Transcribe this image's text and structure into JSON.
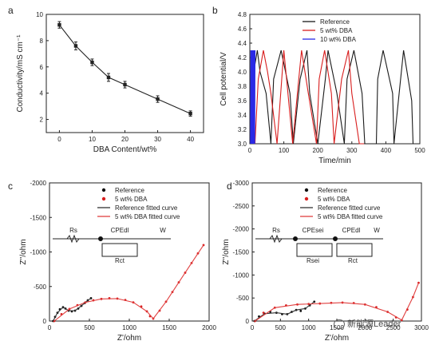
{
  "watermark": "新能源Leader",
  "chart_data": [
    {
      "type": "line",
      "panel_letter": "a",
      "xlabel": "DBA Content/wt%",
      "ylabel": "Conductivity/mS cm⁻¹",
      "xlim": [
        -4,
        44
      ],
      "ylim": [
        1,
        10
      ],
      "xticks": [
        0,
        10,
        20,
        30,
        40
      ],
      "yticks": [
        2,
        4,
        6,
        8,
        10
      ],
      "series": [
        {
          "color": "#222222",
          "x": [
            0,
            5,
            10,
            15,
            20,
            30,
            40
          ],
          "y": [
            9.2,
            7.6,
            6.35,
            5.2,
            4.65,
            3.55,
            2.45
          ],
          "err": [
            0.25,
            0.3,
            0.25,
            0.3,
            0.25,
            0.25,
            0.2
          ]
        }
      ]
    },
    {
      "type": "line",
      "panel_letter": "b",
      "xlabel": "Time/min",
      "ylabel": "Cell potential/V",
      "xlim": [
        0,
        500
      ],
      "ylim": [
        3.0,
        4.8
      ],
      "xticks": [
        0,
        100,
        200,
        300,
        400,
        500
      ],
      "yticks": [
        3.0,
        3.2,
        3.4,
        3.6,
        3.8,
        4.0,
        4.2,
        4.4,
        4.6,
        4.8
      ],
      "legend_position": "top-right",
      "legend": [
        "Reference",
        "5 wt% DBA",
        "10 wt% DBA"
      ],
      "series": [
        {
          "name": "Reference",
          "color": "#1a1a1a",
          "x": [
            0,
            8,
            22,
            30,
            48,
            62,
            70,
            92,
            118,
            128,
            148,
            168,
            176,
            200,
            222,
            230,
            256,
            278,
            286,
            306,
            330,
            338,
            372,
            376,
            392,
            420,
            424,
            452,
            476,
            480
          ],
          "y": [
            3.0,
            3.9,
            4.3,
            4.0,
            3.7,
            3.0,
            3.9,
            4.3,
            3.7,
            3.0,
            3.9,
            4.3,
            3.7,
            3.0,
            3.9,
            4.3,
            3.7,
            3.0,
            3.9,
            4.3,
            3.7,
            3.0,
            3.0,
            3.9,
            4.3,
            3.7,
            3.0,
            4.3,
            3.6,
            3.0
          ]
        },
        {
          "name": "5 wt% DBA",
          "color": "#d81e1e",
          "x": [
            15,
            25,
            40,
            52,
            62,
            80,
            100,
            110,
            126,
            144,
            152,
            172,
            196,
            204,
            220,
            240,
            248,
            270,
            290,
            300,
            322,
            336
          ],
          "y": [
            3.0,
            3.9,
            4.3,
            4.0,
            3.7,
            3.0,
            4.3,
            3.8,
            3.0,
            3.9,
            4.3,
            3.7,
            3.0,
            3.9,
            4.3,
            3.7,
            3.0,
            3.9,
            4.3,
            3.7,
            3.0,
            3.0
          ]
        },
        {
          "name": "10 wt% DBA",
          "color": "#2a2ae6",
          "x": [
            2,
            3,
            5,
            6,
            8,
            9,
            11,
            12,
            14,
            15
          ],
          "y": [
            3.0,
            4.3,
            3.0,
            4.3,
            3.0,
            4.3,
            3.0,
            4.3,
            3.0,
            4.3
          ]
        }
      ]
    },
    {
      "type": "line",
      "panel_letter": "c",
      "xlabel": "Z'/ohm",
      "ylabel": "Z''/ohm",
      "xlim": [
        0,
        2000
      ],
      "ylim": [
        0,
        -2000
      ],
      "xticks": [
        0,
        500,
        1000,
        1500,
        2000
      ],
      "yticks": [
        0,
        -500,
        -1000,
        -1500,
        -2000
      ],
      "legend_position": "top-center",
      "legend": [
        "Reference",
        "5 wt% DBA",
        "Reference fitted curve",
        "5 wt% DBA fitted curve"
      ],
      "circuit_labels": [
        "Rs",
        "CPEdl",
        "W",
        "Rct"
      ],
      "series": [
        {
          "name": "Reference",
          "color": "#111111",
          "marker": "dot",
          "x": [
            45,
            70,
            100,
            130,
            170,
            200,
            240,
            280,
            320,
            360,
            400,
            440,
            480,
            520
          ],
          "y": [
            0,
            -60,
            -120,
            -170,
            -200,
            -180,
            -150,
            -140,
            -150,
            -180,
            -220,
            -260,
            -300,
            -330
          ]
        },
        {
          "name": "5 wt% DBA",
          "color": "#d81e1e",
          "marker": "dot",
          "x": [
            60,
            150,
            250,
            350,
            450,
            550,
            650,
            750,
            850,
            950,
            1050,
            1150,
            1220,
            1260,
            1300,
            1380,
            1460,
            1540,
            1620,
            1700,
            1780,
            1860,
            1930
          ],
          "y": [
            0,
            -100,
            -175,
            -230,
            -270,
            -300,
            -320,
            -330,
            -325,
            -305,
            -270,
            -210,
            -140,
            -70,
            -35,
            -150,
            -280,
            -420,
            -560,
            -700,
            -840,
            -980,
            -1100
          ]
        },
        {
          "name": "Reference fitted curve",
          "color": "#333333",
          "marker": "line",
          "x": [
            45,
            100,
            170,
            240,
            320,
            400,
            480,
            520
          ],
          "y": [
            0,
            -120,
            -200,
            -150,
            -150,
            -220,
            -300,
            -330
          ]
        },
        {
          "name": "5 wt% DBA fitted curve",
          "color": "#e04040",
          "marker": "line",
          "x": [
            60,
            250,
            450,
            650,
            850,
            1050,
            1220,
            1300,
            1460,
            1620,
            1780,
            1930
          ],
          "y": [
            0,
            -175,
            -270,
            -320,
            -325,
            -270,
            -140,
            -35,
            -280,
            -560,
            -840,
            -1100
          ]
        }
      ]
    },
    {
      "type": "line",
      "panel_letter": "d",
      "xlabel": "Z'/ohm",
      "ylabel": "Z''/ohm",
      "xlim": [
        0,
        3000
      ],
      "ylim": [
        0,
        -3000
      ],
      "xticks": [
        0,
        500,
        1000,
        1500,
        2000,
        2500,
        3000
      ],
      "yticks": [
        0,
        -500,
        -1000,
        -1500,
        -2000,
        -2500,
        -3000
      ],
      "legend_position": "top-center",
      "legend": [
        "Reference",
        "5 wt% DBA",
        "Reference fitted curve",
        "5 wt% DBA fitted curve"
      ],
      "circuit_labels": [
        "Rs",
        "CPEsei",
        "CPEdl",
        "W",
        "Rsei",
        "Rct"
      ],
      "series": [
        {
          "name": "Reference",
          "color": "#111111",
          "marker": "dot",
          "x": [
            40,
            120,
            220,
            320,
            430,
            530,
            620,
            700,
            780,
            860,
            940,
            1020,
            1100
          ],
          "y": [
            0,
            -100,
            -160,
            -200,
            -180,
            -150,
            -150,
            -200,
            -240,
            -220,
            -270,
            -340,
            -420
          ]
        },
        {
          "name": "5 wt% DBA",
          "color": "#d81e1e",
          "marker": "dot",
          "x": [
            50,
            200,
            400,
            600,
            800,
            1000,
            1200,
            1400,
            1600,
            1800,
            2000,
            2200,
            2400,
            2550,
            2650,
            2750,
            2850,
            2950
          ],
          "y": [
            0,
            -180,
            -290,
            -340,
            -360,
            -370,
            -380,
            -395,
            -400,
            -390,
            -360,
            -300,
            -200,
            -80,
            -20,
            -250,
            -520,
            -830
          ]
        },
        {
          "name": "Reference fitted curve",
          "color": "#333333",
          "marker": "line",
          "x": [
            40,
            220,
            430,
            620,
            780,
            940,
            1100
          ],
          "y": [
            0,
            -160,
            -180,
            -150,
            -240,
            -270,
            -420
          ]
        },
        {
          "name": "5 wt% DBA fitted curve",
          "color": "#e04040",
          "marker": "line",
          "x": [
            50,
            400,
            800,
            1200,
            1600,
            2000,
            2400,
            2650,
            2850,
            2950
          ],
          "y": [
            0,
            -290,
            -360,
            -380,
            -400,
            -360,
            -200,
            -20,
            -520,
            -830
          ]
        }
      ]
    }
  ]
}
